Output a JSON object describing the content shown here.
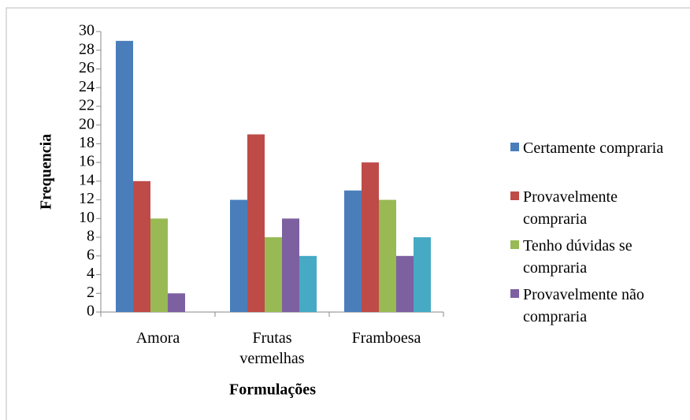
{
  "chart_data": {
    "type": "bar",
    "x_label": "Formulações",
    "y_label": "Frequencia",
    "categories": [
      "Amora",
      "Frutas vermelhas",
      "Framboesa"
    ],
    "series": [
      {
        "name": "Certamente compraria",
        "color": "#4a7ebb",
        "values": [
          29,
          12,
          13
        ]
      },
      {
        "name": "Provavelmente compraria",
        "color": "#be4b48",
        "values": [
          14,
          19,
          16
        ]
      },
      {
        "name": "Tenho dúvidas se compraria",
        "color": "#98b954",
        "values": [
          10,
          8,
          12
        ]
      },
      {
        "name": "Provavelmente não compraria",
        "color": "#7d60a0",
        "values": [
          2,
          10,
          6
        ]
      },
      {
        "color": "#46aac5",
        "values": [
          0,
          6,
          8
        ]
      }
    ],
    "ylim": [
      0,
      30
    ],
    "yticks": [
      0,
      2,
      4,
      6,
      8,
      10,
      12,
      14,
      16,
      18,
      20,
      22,
      24,
      26,
      28,
      30
    ],
    "legend": "right"
  }
}
